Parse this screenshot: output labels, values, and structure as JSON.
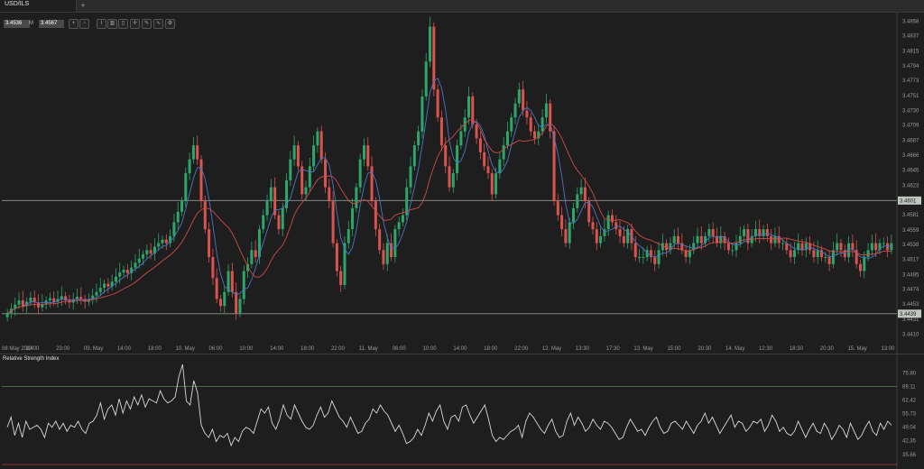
{
  "tab": {
    "label": "USD/ILS",
    "add": "+"
  },
  "quote": {
    "bid": "3.4536",
    "sep": "M",
    "ask": "3.4567"
  },
  "toolbar": {
    "icons": [
      "zoom-in-icon",
      "zoom-out-icon",
      "line-chart-icon",
      "bar-chart-icon",
      "candle-chart-icon",
      "crosshair-icon",
      "draw-icon",
      "indicator-icon",
      "settings-icon"
    ],
    "glyphs": [
      "+",
      "−",
      "⌇",
      "▥",
      "▯",
      "✛",
      "✎",
      "∿",
      "⚙"
    ]
  },
  "colors": {
    "up": "#2ea66b",
    "down": "#d9534f",
    "ma_fast": "#4d74c4",
    "ma_slow": "#d04a4a",
    "hline": "#8f9a8f",
    "rsi": "#d8d8d8",
    "rsi_top": "#4d8a4d",
    "rsi_bottom": "#b03a3a"
  },
  "chart_data": [
    {
      "type": "candlestick",
      "symbol": "USD/ILS",
      "y_ticks": [
        "3.4858",
        "3.4837",
        "3.4815",
        "3.4794",
        "3.4773",
        "3.4751",
        "3.4730",
        "3.4709",
        "3.4687",
        "3.4666",
        "3.4645",
        "3.4623",
        "3.4601",
        "3.4581",
        "3.4559",
        "3.4538",
        "3.4517",
        "3.4495",
        "3.4474",
        "3.4453",
        "3.4431",
        "3.4410"
      ],
      "ylim": [
        3.44,
        3.487
      ],
      "x_ticks": [
        "08 May 2014",
        "19:00",
        "23:00",
        "09. May",
        "14:00",
        "18:00",
        "10. May",
        "06:00",
        "10:00",
        "14:00",
        "18:00",
        "22:00",
        "11. May",
        "06:00",
        "10:00",
        "14:00",
        "18:00",
        "22:00",
        "12. May",
        "13:30",
        "17:30",
        "13. May",
        "15:00",
        "20:30",
        "14. May",
        "12:30",
        "18:30",
        "20:30",
        "15. May",
        "13:00"
      ],
      "horizontal_lines": [
        {
          "value": 3.4601,
          "label": "3.4601"
        },
        {
          "value": 3.4439,
          "label": "3.4439"
        }
      ],
      "close": [
        3.444,
        3.4446,
        3.4452,
        3.4458,
        3.445,
        3.4456,
        3.4462,
        3.4455,
        3.4448,
        3.4453,
        3.4458,
        3.4461,
        3.4456,
        3.446,
        3.4464,
        3.4458,
        3.4455,
        3.4459,
        3.4463,
        3.446,
        3.4456,
        3.446,
        3.4465,
        3.447,
        3.4476,
        3.4482,
        3.4478,
        3.4485,
        3.4492,
        3.4498,
        3.4502,
        3.4497,
        3.4505,
        3.4512,
        3.4518,
        3.4524,
        3.453,
        3.4525,
        3.4535,
        3.454,
        3.4545,
        3.454,
        3.455,
        3.457,
        3.4585,
        3.46,
        3.464,
        3.466,
        3.468,
        3.466,
        3.46,
        3.456,
        3.452,
        3.449,
        3.446,
        3.445,
        3.447,
        3.45,
        3.447,
        3.444,
        3.446,
        3.45,
        3.451,
        3.453,
        3.452,
        3.456,
        3.458,
        3.46,
        3.462,
        3.458,
        3.456,
        3.459,
        3.463,
        3.466,
        3.468,
        3.465,
        3.461,
        3.462,
        3.465,
        3.468,
        3.47,
        3.466,
        3.462,
        3.46,
        3.454,
        3.45,
        3.448,
        3.454,
        3.456,
        3.459,
        3.462,
        3.466,
        3.468,
        3.465,
        3.46,
        3.456,
        3.453,
        3.451,
        3.454,
        3.452,
        3.456,
        3.457,
        3.458,
        3.462,
        3.465,
        3.468,
        3.47,
        3.475,
        3.48,
        3.485,
        3.476,
        3.472,
        3.468,
        3.465,
        3.462,
        3.464,
        3.468,
        3.47,
        3.472,
        3.475,
        3.471,
        3.469,
        3.467,
        3.465,
        3.464,
        3.461,
        3.464,
        3.466,
        3.468,
        3.47,
        3.472,
        3.474,
        3.476,
        3.473,
        3.472,
        3.47,
        3.469,
        3.47,
        3.472,
        3.474,
        3.47,
        3.46,
        3.458,
        3.456,
        3.454,
        3.457,
        3.459,
        3.461,
        3.462,
        3.46,
        3.457,
        3.456,
        3.454,
        3.455,
        3.456,
        3.458,
        3.457,
        3.456,
        3.455,
        3.454,
        3.456,
        3.454,
        3.452,
        3.452,
        3.452,
        3.453,
        3.452,
        3.451,
        3.453,
        3.454,
        3.453,
        3.454,
        3.455,
        3.454,
        3.453,
        3.452,
        3.453,
        3.454,
        3.455,
        3.454,
        3.455,
        3.456,
        3.455,
        3.454,
        3.455,
        3.454,
        3.453,
        3.453,
        3.454,
        3.455,
        3.456,
        3.454,
        3.455,
        3.456,
        3.455,
        3.456,
        3.455,
        3.454,
        3.455,
        3.454,
        3.454,
        3.453,
        3.452,
        3.453,
        3.454,
        3.453,
        3.454,
        3.453,
        3.452,
        3.453,
        3.452,
        3.452,
        3.451,
        3.453,
        3.454,
        3.453,
        3.452,
        3.454,
        3.453,
        3.451,
        3.45,
        3.452,
        3.453,
        3.454,
        3.453,
        3.454,
        3.454,
        3.453,
        3.454
      ],
      "open_prev_close": true,
      "ma_fast_period": 5,
      "ma_slow_period": 14
    },
    {
      "type": "line",
      "title": "Relative Strength Index",
      "y_ticks": [
        "75.80",
        "69.11",
        "62.42",
        "55.73",
        "49.04",
        "42.35",
        "35.66"
      ],
      "ylim": [
        32,
        80
      ],
      "upper_level": 69.11,
      "values": [
        49,
        54,
        45,
        51,
        44,
        52,
        48,
        49,
        50,
        48,
        44,
        51,
        49,
        52,
        48,
        51,
        47,
        50,
        49,
        52,
        48,
        46,
        51,
        52,
        55,
        61,
        53,
        58,
        60,
        55,
        63,
        56,
        62,
        58,
        64,
        60,
        65,
        59,
        63,
        62,
        61,
        67,
        63,
        61,
        62,
        64,
        74,
        80,
        62,
        60,
        72,
        66,
        50,
        46,
        44,
        48,
        42,
        45,
        44,
        46,
        40,
        44,
        42,
        47,
        49,
        48,
        46,
        52,
        58,
        56,
        59,
        51,
        48,
        53,
        60,
        55,
        53,
        60,
        56,
        52,
        49,
        48,
        50,
        55,
        59,
        54,
        56,
        62,
        58,
        54,
        52,
        49,
        54,
        50,
        46,
        47,
        51,
        53,
        58,
        56,
        60,
        57,
        55,
        51,
        47,
        50,
        46,
        41,
        42,
        44,
        48,
        45,
        50,
        56,
        52,
        57,
        60,
        52,
        48,
        54,
        55,
        52,
        59,
        60,
        55,
        51,
        54,
        57,
        60,
        53,
        45,
        42,
        44,
        43,
        45,
        47,
        48,
        50,
        44,
        52,
        56,
        54,
        51,
        48,
        46,
        50,
        53,
        47,
        44,
        45,
        52,
        56,
        50,
        54,
        51,
        47,
        49,
        53,
        50,
        48,
        52,
        51,
        49,
        46,
        43,
        44,
        49,
        53,
        50,
        47,
        48,
        45,
        49,
        52,
        54,
        49,
        46,
        47,
        51,
        52,
        50,
        48,
        52,
        49,
        46,
        50,
        52,
        56,
        51,
        54,
        50,
        46,
        49,
        52,
        55,
        49,
        52,
        51,
        47,
        49,
        52,
        51,
        53,
        47,
        50,
        55,
        52,
        47,
        49,
        46,
        45,
        47,
        52,
        48,
        44,
        48,
        51,
        47,
        46,
        51,
        48,
        43,
        46,
        50,
        48,
        44,
        51,
        47,
        43,
        45,
        49,
        52,
        47,
        45,
        51,
        48,
        52,
        50
      ]
    }
  ]
}
